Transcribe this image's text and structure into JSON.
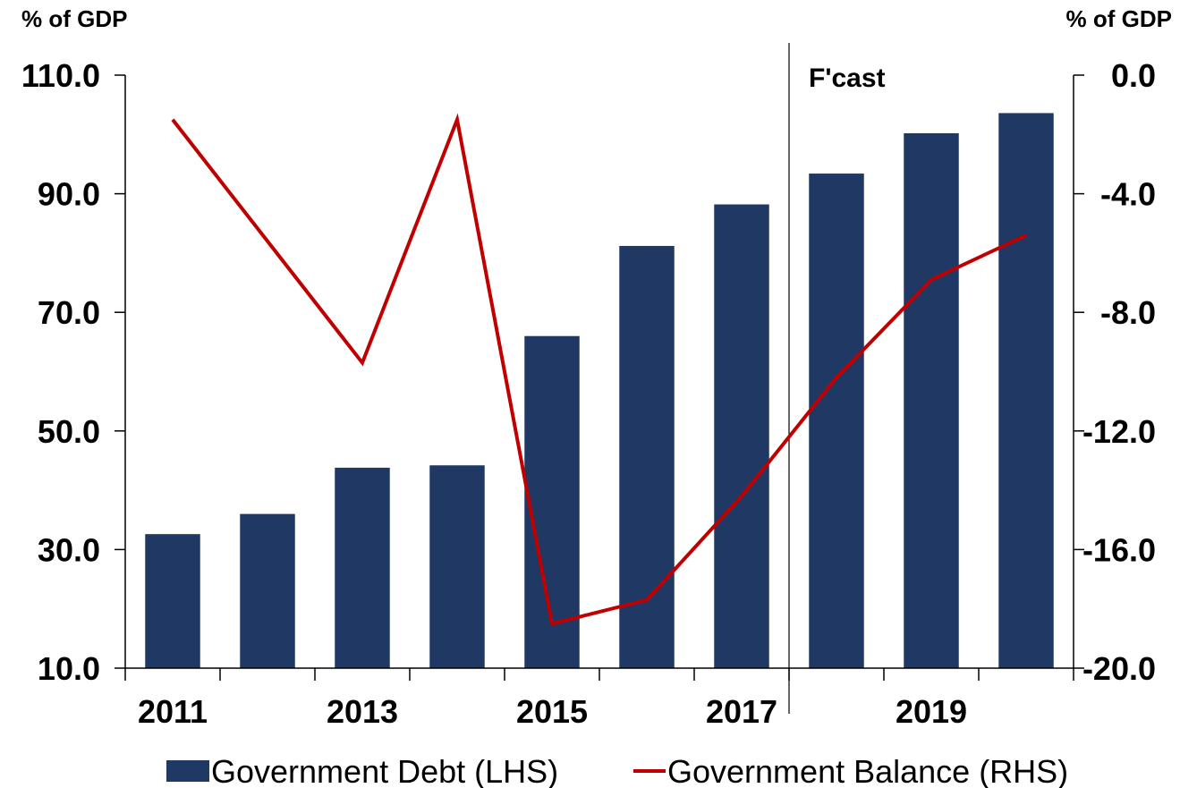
{
  "chart_data": {
    "type": "bar",
    "title": "",
    "left_axis_unit": "% of GDP",
    "right_axis_unit": "% of GDP",
    "categories": [
      "2011",
      "2012",
      "2013",
      "2014",
      "2015",
      "2016",
      "2017",
      "2018",
      "2019",
      "2020"
    ],
    "x_tick_labels": [
      "2011",
      "2013",
      "2015",
      "2017",
      "2019"
    ],
    "series": [
      {
        "name": "Government Debt (LHS)",
        "type": "bar",
        "axis": "left",
        "color": "#1f3864",
        "values": [
          32.6,
          36.0,
          43.8,
          44.2,
          66.0,
          81.2,
          88.2,
          93.4,
          100.2,
          103.6
        ]
      },
      {
        "name": "Government Balance (RHS)",
        "type": "line",
        "axis": "right",
        "color": "#c00000",
        "values": [
          -1.5,
          -5.6,
          -9.7,
          -1.5,
          -18.5,
          -17.7,
          -14.2,
          -10.2,
          -6.9,
          -5.4
        ]
      }
    ],
    "left_axis": {
      "min": 10,
      "max": 110,
      "ticks": [
        "110.0",
        "90.0",
        "70.0",
        "50.0",
        "30.0",
        "10.0"
      ]
    },
    "right_axis": {
      "min": -20,
      "max": 0,
      "ticks": [
        "0.0",
        "-4.0",
        "-8.0",
        "-12.0",
        "-16.0",
        "-20.0"
      ]
    },
    "forecast": {
      "label": "F'cast",
      "start_after": "2017"
    },
    "grid": false,
    "legend": "bottom"
  }
}
